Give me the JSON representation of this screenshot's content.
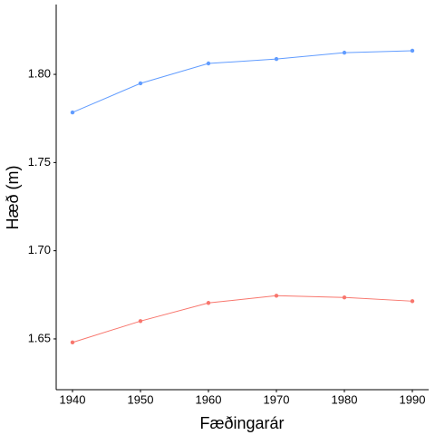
{
  "chart_data": {
    "type": "line",
    "x_label": "Fæðingarár",
    "y_label": "Hæð (m)",
    "x": [
      1940,
      1950,
      1960,
      1970,
      1980,
      1990
    ],
    "series": [
      {
        "color": "#619CFF",
        "values": [
          1.7784,
          1.7949,
          1.8062,
          1.8087,
          1.8123,
          1.8134
        ]
      },
      {
        "color": "#F8766D",
        "values": [
          1.648,
          1.6601,
          1.6704,
          1.6745,
          1.6735,
          1.6714
        ]
      }
    ],
    "xlim": [
      1937.6,
      1992.4
    ],
    "xticks": [
      1940,
      1950,
      1960,
      1970,
      1980,
      1990
    ],
    "ylim": [
      1.6212,
      1.8396
    ],
    "yticks": [
      1.65,
      {
        "value": 1.7,
        "label": "1.70"
      },
      1.75,
      {
        "value": 1.8,
        "label": "1.80"
      }
    ],
    "grid": false
  }
}
